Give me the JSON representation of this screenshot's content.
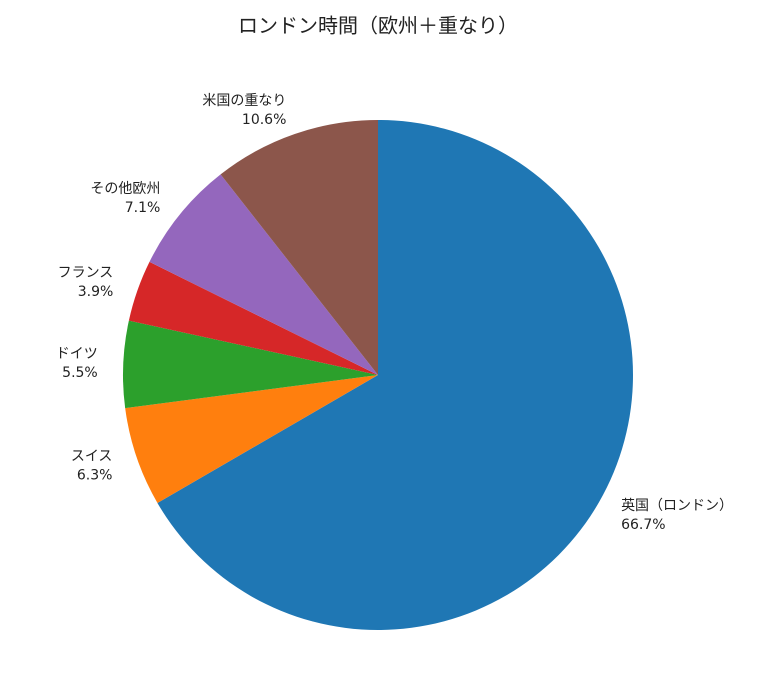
{
  "chart_data": {
    "type": "pie",
    "title": "ロンドン時間（欧州＋重なり）",
    "categories": [
      "英国（ロンドン）",
      "スイス",
      "ドイツ",
      "フランス",
      "その他欧州",
      "米国の重なり"
    ],
    "values": [
      66.7,
      6.3,
      5.5,
      3.9,
      7.1,
      10.6
    ],
    "value_labels": [
      "66.7%",
      "6.3%",
      "5.5%",
      "3.9%",
      "7.1%",
      "10.6%"
    ],
    "colors": [
      "#1f77b4",
      "#ff7f0e",
      "#2ca02c",
      "#d62728",
      "#9467bd",
      "#8c564b"
    ]
  }
}
